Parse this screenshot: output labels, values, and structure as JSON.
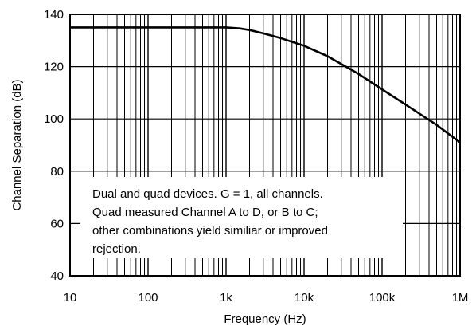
{
  "chart_data": {
    "type": "line",
    "title": "",
    "xlabel": "Frequency (Hz)",
    "ylabel": "Channel Separation (dB)",
    "xscale": "log",
    "xlim": [
      10,
      1000000
    ],
    "ylim": [
      40,
      140
    ],
    "grid": true,
    "x_ticks": [
      10,
      100,
      1000,
      10000,
      100000,
      1000000
    ],
    "x_tick_labels": [
      "10",
      "100",
      "1k",
      "10k",
      "100k",
      "1M"
    ],
    "y_ticks": [
      40,
      60,
      80,
      100,
      120,
      140
    ],
    "y_tick_labels": [
      "40",
      "60",
      "80",
      "100",
      "120",
      "140"
    ],
    "series": [
      {
        "x": [
          10,
          100,
          1000,
          1500,
          2000,
          3000,
          5000,
          10000,
          20000,
          50000,
          100000,
          200000,
          500000,
          1000000
        ],
        "y": [
          135,
          135,
          135,
          134.6,
          134,
          132.7,
          130.9,
          128,
          124,
          117.2,
          111.3,
          105.5,
          97.7,
          91
        ]
      }
    ],
    "annotation_lines": [
      "Dual and quad devices. G = 1, all channels.",
      "Quad measured Channel A to D, or B to C;",
      "other combinations yield similiar or improved",
      "rejection."
    ],
    "color": "#000000"
  }
}
